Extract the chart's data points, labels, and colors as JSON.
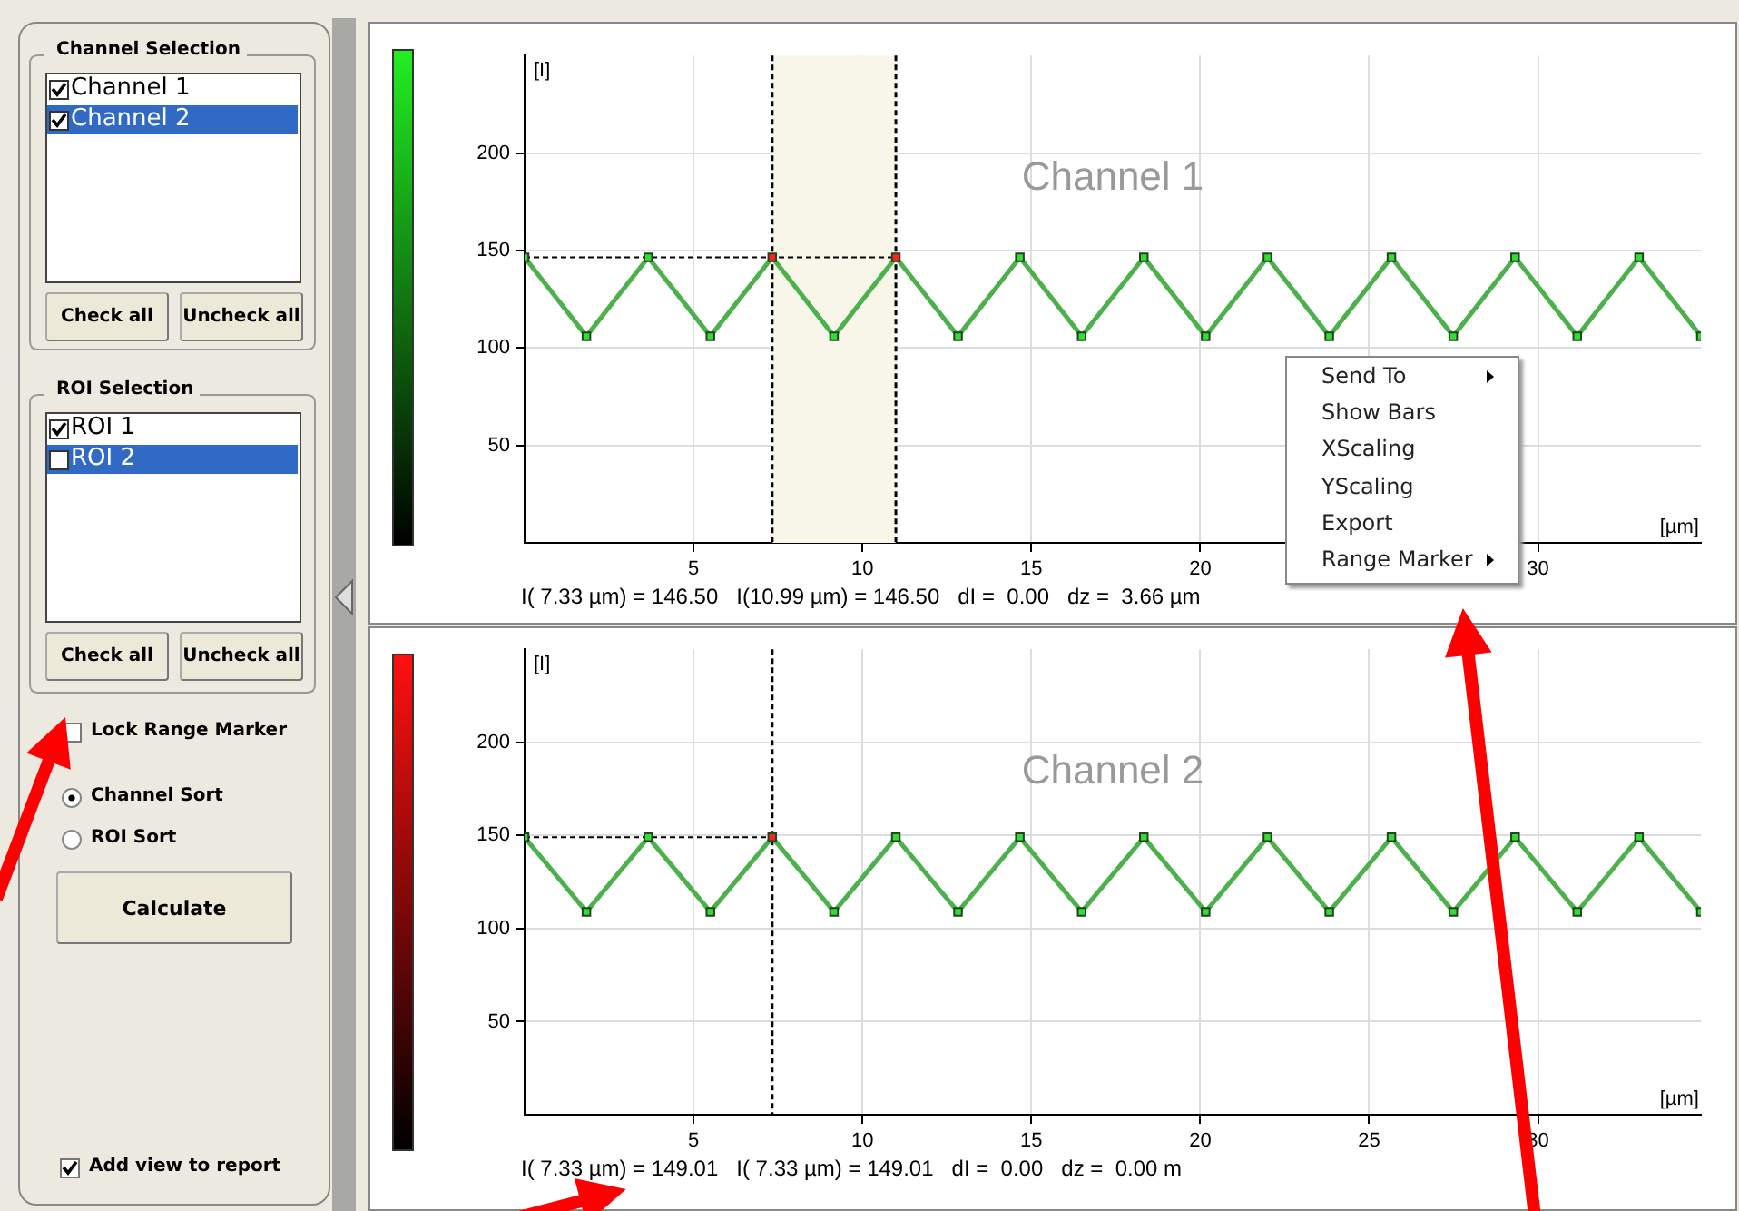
{
  "chart_data": [
    {
      "type": "line",
      "title": "Channel 1",
      "xlabel": "[µm]",
      "ylabel": "[I]",
      "x": [
        0,
        1.83,
        3.66,
        5.5,
        7.33,
        9.16,
        10.99,
        12.83,
        14.66,
        16.49,
        18.33,
        20.16,
        21.99,
        23.82,
        25.66,
        27.49,
        29.32,
        31.16,
        32.99,
        34.82
      ],
      "series": [
        {
          "color": "#4cb04c",
          "values": [
            146.5,
            106,
            146.5,
            106,
            146.5,
            106,
            146.5,
            106,
            146.5,
            106,
            146.5,
            106,
            146.5,
            106,
            146.5,
            106,
            146.5,
            106,
            146.5,
            106
          ],
          "colors": [
            "#33dd33",
            "#33dd33",
            "#33dd33",
            "#33dd33",
            "#ff2020",
            "#33dd33",
            "#ff2020",
            "#33dd33",
            "#33dd33",
            "#33dd33",
            "#33dd33",
            "#33dd33",
            "#33dd33",
            "#33dd33",
            "#33dd33",
            "#33dd33",
            "#33dd33",
            "#33dd33",
            "#33dd33",
            "#33dd33"
          ]
        }
      ],
      "xlim": [
        0,
        34.82
      ],
      "xticks": [
        5,
        10,
        15,
        20,
        {
          "value": 25,
          "label": null
        },
        30
      ],
      "ylim": [
        0,
        250
      ],
      "yticks": [
        50,
        100,
        150,
        200
      ],
      "grid": true,
      "legend": false,
      "marker": "square",
      "ref_lines": [
        {
          "axis": "x",
          "value": 7.33,
          "color": "#000000",
          "line_style": "dashed"
        },
        {
          "axis": "x",
          "value": 10.99,
          "color": "#000000",
          "line_style": "dashed"
        },
        {
          "axis": "y",
          "value": 146.5,
          "color": "#000000",
          "line_style": "dashed"
        }
      ],
      "bands": [
        {
          "axis": "x",
          "from": 7.33,
          "to": 10.99,
          "color": "#f7f6e9"
        }
      ],
      "annotations": [
        "I( 7.33 µm) = 146.50   I(10.99 µm) = 146.50   dI =  0.00   dz =  3.66 µm"
      ]
    },
    {
      "type": "line",
      "title": "Channel 2",
      "xlabel": "[µm]",
      "ylabel": "[I]",
      "x": [
        0,
        1.83,
        3.66,
        5.5,
        7.33,
        9.16,
        10.99,
        12.83,
        14.66,
        16.49,
        18.33,
        20.16,
        21.99,
        23.82,
        25.66,
        27.49,
        29.32,
        31.16,
        32.99,
        34.82
      ],
      "series": [
        {
          "color": "#4cb04c",
          "values": [
            149.01,
            109,
            149.01,
            109,
            149.01,
            109,
            149.01,
            109,
            149.01,
            109,
            149.01,
            109,
            149.01,
            109,
            149.01,
            109,
            149.01,
            109,
            149.01,
            109
          ],
          "colors": [
            "#33dd33",
            "#33dd33",
            "#33dd33",
            "#33dd33",
            "#ff2020",
            "#33dd33",
            "#33dd33",
            "#33dd33",
            "#33dd33",
            "#33dd33",
            "#33dd33",
            "#33dd33",
            "#33dd33",
            "#33dd33",
            "#33dd33",
            "#33dd33",
            "#33dd33",
            "#33dd33",
            "#33dd33",
            "#33dd33"
          ]
        }
      ],
      "xlim": [
        0,
        34.82
      ],
      "xticks": [
        5,
        10,
        15,
        20,
        25,
        30
      ],
      "ylim": [
        0,
        250
      ],
      "yticks": [
        50,
        100,
        150,
        200
      ],
      "grid": true,
      "legend": false,
      "marker": "square",
      "ref_lines": [
        {
          "axis": "x",
          "value": 7.33,
          "color": "#000000",
          "line_style": "dashed"
        },
        {
          "axis": "y",
          "value": 149.01,
          "color": "#000000",
          "line_style": "dashed"
        }
      ],
      "annotations": [
        "I( 7.33 µm) = 149.01   I( 7.33 µm) = 149.01   dI =  0.00   dz =  0.00 m"
      ]
    },
    {
      "type": "other",
      "annotations": [
        "Channel Selection",
        "Channel 1",
        "Channel 2",
        "Check all",
        "Uncheck all",
        "ROI Selection",
        "ROI 1",
        "ROI 2",
        "Check all",
        "Uncheck all",
        "Lock Range Marker",
        "Channel Sort",
        "ROI Sort",
        "Calculate",
        "Add view to report",
        "Send To",
        "Show Bars",
        "XScaling",
        "YScaling",
        "Export",
        "Range Marker"
      ]
    }
  ]
}
